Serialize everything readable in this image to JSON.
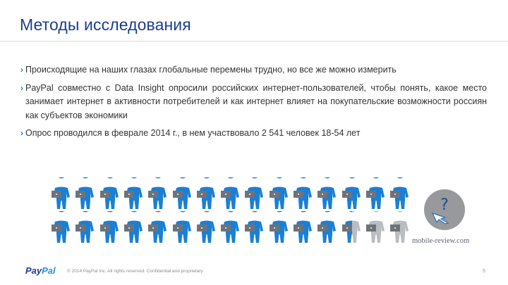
{
  "slide": {
    "title": "Методы исследования",
    "bullets": [
      "Происходящие на наших глазах глобальные перемены трудно, но все же можно измерить",
      "PayPal совместно с Data Insight опросили российских интернет-пользователей, чтобы понять, какое место занимает интернет в активности потребителей и как интернет влияет на покупательские возможности россиян как субъектов экономики",
      "Опрос проводился в феврале 2014 г., в нем участвовало 2 541 человек 18-54 лет"
    ]
  },
  "infographic": {
    "rows": 2,
    "per_row": 15,
    "total_figures": 30,
    "highlighted_figures": 27.5,
    "highlight_color": "#1b7fd4",
    "muted_color": "#b9bcc1",
    "laptop_color": "#6e7379"
  },
  "badge": {
    "symbol": "?",
    "color": "#97999d",
    "watermark": "mobile-review.com"
  },
  "footer": {
    "logo_pay": "Pay",
    "logo_pal": "Pal",
    "copyright": "© 2014 PayPal Inc. All rights reserved. Confidential and proprietary.",
    "page_number": "5"
  },
  "colors": {
    "title": "#1b3d8f",
    "bullet_marker": "#1b78d2",
    "body_text": "#333333"
  }
}
